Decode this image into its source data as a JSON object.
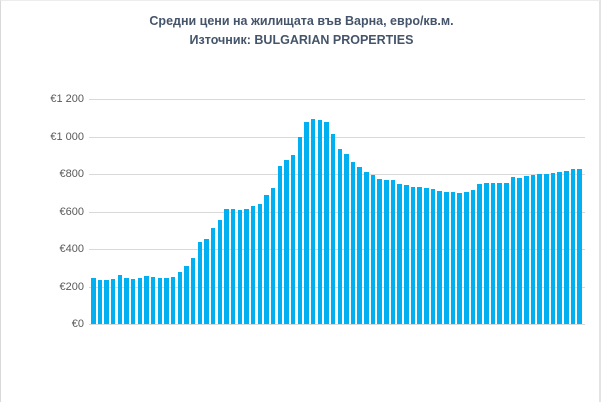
{
  "chart_data": {
    "type": "bar",
    "title": "Средни цени на жилищата във Варна, евро/кв.м.",
    "subtitle": "Източник: BULGARIAN PROPERTIES",
    "xlabel": "",
    "ylabel": "",
    "ylim": [
      0,
      1200
    ],
    "yticks": [
      0,
      200,
      400,
      600,
      800,
      1000,
      1200
    ],
    "ytick_labels": [
      "€0",
      "€200",
      "€400",
      "€600",
      "€800",
      "€1 000",
      "€1 200"
    ],
    "grid": true,
    "legend": null,
    "bar_color": "#00b0f0",
    "categories": [],
    "values": [
      245,
      235,
      235,
      240,
      262,
      245,
      240,
      245,
      255,
      250,
      245,
      245,
      250,
      278,
      310,
      350,
      435,
      455,
      510,
      555,
      615,
      615,
      610,
      615,
      630,
      640,
      690,
      725,
      845,
      875,
      900,
      995,
      1075,
      1095,
      1090,
      1075,
      1015,
      935,
      905,
      865,
      835,
      810,
      795,
      775,
      770,
      770,
      745,
      740,
      730,
      730,
      725,
      720,
      710,
      705,
      705,
      700,
      705,
      715,
      745,
      750,
      750,
      750,
      750,
      785,
      780,
      790,
      795,
      800,
      800,
      805,
      810,
      815,
      825,
      825
    ]
  },
  "header": {
    "title": "Средни цени на жилищата във Варна, евро/кв.м.",
    "source": "Източник: BULGARIAN PROPERTIES"
  },
  "colors": {
    "bar": "#00b0f0",
    "title": "#44546a",
    "axis_text": "#595959",
    "grid": "#d9d9d9"
  }
}
